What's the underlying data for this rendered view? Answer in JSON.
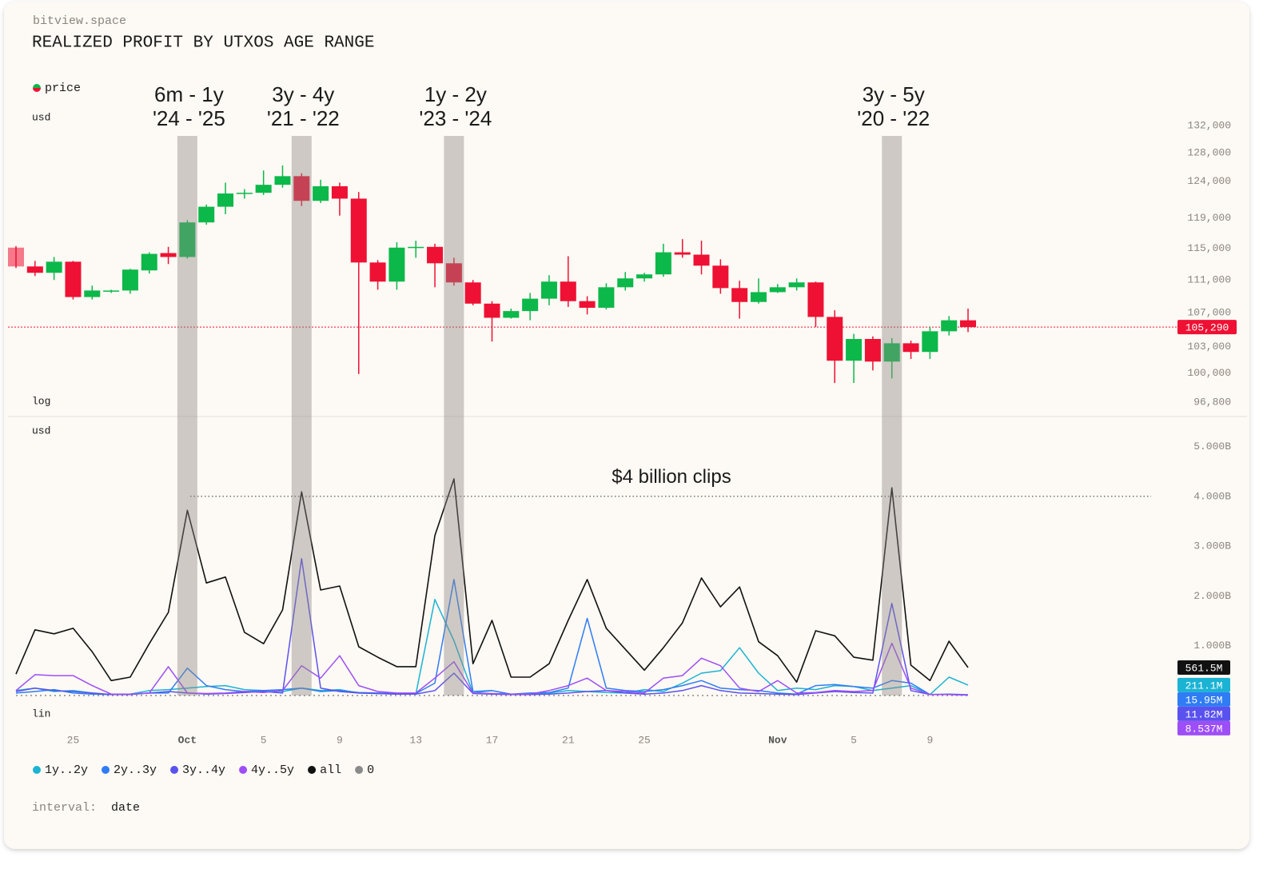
{
  "header": {
    "site": "bitview.space",
    "title": "REALIZED PROFIT BY UTXOS AGE RANGE"
  },
  "footer": {
    "label": "interval:",
    "value": "date"
  },
  "chart_data": [
    {
      "type": "candlestick",
      "name": "price",
      "y_unit": "usd",
      "scale": "log",
      "up_color": "#0cb84a",
      "down_color": "#ee1133",
      "categories": [
        "Sep 22",
        "Sep 23",
        "Sep 24",
        "Sep 25",
        "Sep 26",
        "Sep 27",
        "Sep 28",
        "Sep 29",
        "Sep 30",
        "Oct 1",
        "Oct 2",
        "Oct 3",
        "Oct 4",
        "Oct 5",
        "Oct 6",
        "Oct 7",
        "Oct 8",
        "Oct 9",
        "Oct 10",
        "Oct 11",
        "Oct 12",
        "Oct 13",
        "Oct 14",
        "Oct 15",
        "Oct 16",
        "Oct 17",
        "Oct 18",
        "Oct 19",
        "Oct 20",
        "Oct 21",
        "Oct 22",
        "Oct 23",
        "Oct 24",
        "Oct 25",
        "Oct 26",
        "Oct 27",
        "Oct 28",
        "Oct 29",
        "Oct 30",
        "Oct 31",
        "Nov 1",
        "Nov 2",
        "Nov 3",
        "Nov 4",
        "Nov 5",
        "Nov 6",
        "Nov 7",
        "Nov 8",
        "Nov 9",
        "Nov 10",
        "Nov 11"
      ],
      "open": [
        115100,
        112700,
        111900,
        113300,
        108900,
        109600,
        109700,
        112200,
        114400,
        113900,
        118400,
        120500,
        122300,
        122400,
        123500,
        124700,
        121300,
        123300,
        121600,
        113200,
        110800,
        115100,
        115200,
        113100,
        110700,
        108100,
        106400,
        107200,
        108700,
        110800,
        108400,
        107600,
        110100,
        111200,
        111700,
        114500,
        114200,
        112800,
        110000,
        108300,
        109500,
        110100,
        110700,
        106500,
        101400,
        103900,
        101300,
        103400,
        102400,
        104800,
        106100
      ],
      "high": [
        115300,
        113400,
        113900,
        113400,
        110300,
        109800,
        112400,
        114500,
        115200,
        118700,
        120800,
        123800,
        122900,
        125500,
        126200,
        125100,
        124200,
        123800,
        122500,
        113500,
        115800,
        116000,
        115600,
        113800,
        111000,
        108400,
        107500,
        109400,
        111600,
        114000,
        109000,
        110600,
        112000,
        111900,
        115600,
        116200,
        116000,
        113600,
        110900,
        111200,
        110500,
        111200,
        110800,
        107300,
        104500,
        104200,
        104000,
        103700,
        105300,
        106600,
        107500
      ],
      "low": [
        112500,
        111500,
        111000,
        108600,
        108600,
        109400,
        109300,
        111800,
        113000,
        113700,
        118100,
        119500,
        121600,
        122100,
        123100,
        120600,
        121000,
        119300,
        99900,
        109800,
        109800,
        113800,
        110100,
        110300,
        107900,
        103600,
        106300,
        106100,
        107900,
        107700,
        106800,
        107400,
        109700,
        110800,
        111400,
        113800,
        111700,
        109300,
        106300,
        108100,
        109400,
        109700,
        105300,
        98900,
        98900,
        100300,
        99400,
        101600,
        101600,
        104300,
        104700
      ],
      "close": [
        112700,
        111900,
        113300,
        108900,
        109700,
        109700,
        112300,
        114300,
        113900,
        118400,
        120500,
        122300,
        122400,
        123500,
        124700,
        121300,
        123300,
        121600,
        113200,
        110800,
        115100,
        115200,
        113100,
        110700,
        108100,
        106400,
        107200,
        108700,
        110800,
        108400,
        107600,
        110100,
        111200,
        111700,
        114500,
        114200,
        112800,
        110000,
        108300,
        109500,
        110100,
        110700,
        106500,
        101400,
        103900,
        101300,
        103400,
        102400,
        104800,
        106100,
        105290
      ],
      "last_label": "105,290",
      "ylim": [
        95765,
        134010
      ],
      "yticks": [
        {
          "value": 96800,
          "label": "96,800"
        },
        {
          "value": 100000,
          "label": "100,000"
        },
        {
          "value": 103000,
          "label": "103,000"
        },
        {
          "value": 107000,
          "label": "107,000"
        },
        {
          "value": 111000,
          "label": "111,000"
        },
        {
          "value": 115000,
          "label": "115,000"
        },
        {
          "value": 119000,
          "label": "119,000"
        },
        {
          "value": 124000,
          "label": "124,000"
        },
        {
          "value": 128000,
          "label": "128,000"
        },
        {
          "value": 132000,
          "label": "132,000"
        }
      ],
      "annotations": [
        {
          "x": "Oct 1",
          "lines": [
            "6m - 1y",
            "'24 - '25"
          ]
        },
        {
          "x": "Oct 7",
          "lines": [
            "3y - 4y",
            "'21 - '22"
          ]
        },
        {
          "x": "Oct 15",
          "lines": [
            "1y - 2y",
            "'23 - '24"
          ]
        },
        {
          "x": "Nov 7",
          "lines": [
            "3y - 5y",
            "'20 - '22"
          ]
        }
      ]
    },
    {
      "type": "line",
      "y_unit": "usd",
      "scale": "lin",
      "categories": [
        "Sep 22",
        "Sep 23",
        "Sep 24",
        "Sep 25",
        "Sep 26",
        "Sep 27",
        "Sep 28",
        "Sep 29",
        "Sep 30",
        "Oct 1",
        "Oct 2",
        "Oct 3",
        "Oct 4",
        "Oct 5",
        "Oct 6",
        "Oct 7",
        "Oct 8",
        "Oct 9",
        "Oct 10",
        "Oct 11",
        "Oct 12",
        "Oct 13",
        "Oct 14",
        "Oct 15",
        "Oct 16",
        "Oct 17",
        "Oct 18",
        "Oct 19",
        "Oct 20",
        "Oct 21",
        "Oct 22",
        "Oct 23",
        "Oct 24",
        "Oct 25",
        "Oct 26",
        "Oct 27",
        "Oct 28",
        "Oct 29",
        "Oct 30",
        "Oct 31",
        "Nov 1",
        "Nov 2",
        "Nov 3",
        "Nov 4",
        "Nov 5",
        "Nov 6",
        "Nov 7",
        "Nov 8",
        "Nov 9",
        "Nov 10",
        "Nov 11"
      ],
      "xticks": [
        {
          "value": "Sep 25",
          "label": "25"
        },
        {
          "value": "Oct 1",
          "label": "Oct"
        },
        {
          "value": "Oct 5",
          "label": "5"
        },
        {
          "value": "Oct 9",
          "label": "9"
        },
        {
          "value": "Oct 13",
          "label": "13"
        },
        {
          "value": "Oct 17",
          "label": "17"
        },
        {
          "value": "Oct 21",
          "label": "21"
        },
        {
          "value": "Oct 25",
          "label": "25"
        },
        {
          "value": "Nov 1",
          "label": "Nov"
        },
        {
          "value": "Nov 5",
          "label": "5"
        },
        {
          "value": "Nov 9",
          "label": "9"
        }
      ],
      "ylim": [
        -160000000,
        5217000000
      ],
      "yticks": [
        {
          "value": 1000000000,
          "label": "1.000B"
        },
        {
          "value": 2000000000,
          "label": "2.000B"
        },
        {
          "value": 3000000000,
          "label": "3.000B"
        },
        {
          "value": 4000000000,
          "label": "4.000B"
        },
        {
          "value": 5000000000,
          "label": "5.000B"
        }
      ],
      "reference_line": {
        "value": 4000000000,
        "label": "$4 billion clips"
      },
      "series": [
        {
          "name": "1y..2y",
          "color": "#1bb3d3",
          "last_label": "211.1M",
          "values": [
            100000000,
            150000000,
            80000000,
            100000000,
            50000000,
            20000000,
            30000000,
            100000000,
            120000000,
            150000000,
            180000000,
            200000000,
            120000000,
            100000000,
            80000000,
            150000000,
            100000000,
            120000000,
            50000000,
            40000000,
            30000000,
            30000000,
            1930000000,
            1100000000,
            50000000,
            100000000,
            20000000,
            40000000,
            50000000,
            100000000,
            80000000,
            60000000,
            50000000,
            120000000,
            80000000,
            250000000,
            450000000,
            500000000,
            960000000,
            450000000,
            100000000,
            150000000,
            120000000,
            200000000,
            180000000,
            100000000,
            150000000,
            200000000,
            20000000,
            370000000,
            211100000
          ]
        },
        {
          "name": "2y..3y",
          "color": "#2f7cf4",
          "last_label": "15.95M",
          "values": [
            50000000,
            80000000,
            120000000,
            50000000,
            30000000,
            20000000,
            30000000,
            50000000,
            50000000,
            550000000,
            200000000,
            120000000,
            80000000,
            100000000,
            120000000,
            150000000,
            80000000,
            100000000,
            60000000,
            50000000,
            40000000,
            40000000,
            250000000,
            2330000000,
            80000000,
            100000000,
            30000000,
            50000000,
            60000000,
            150000000,
            1550000000,
            150000000,
            100000000,
            80000000,
            120000000,
            200000000,
            300000000,
            150000000,
            120000000,
            100000000,
            50000000,
            30000000,
            200000000,
            220000000,
            180000000,
            150000000,
            300000000,
            250000000,
            20000000,
            30000000,
            15950000
          ]
        },
        {
          "name": "3y..4y",
          "color": "#5a52ee",
          "last_label": "11.82M",
          "values": [
            80000000,
            150000000,
            100000000,
            80000000,
            50000000,
            20000000,
            20000000,
            50000000,
            80000000,
            50000000,
            30000000,
            40000000,
            60000000,
            80000000,
            50000000,
            2750000000,
            150000000,
            80000000,
            50000000,
            40000000,
            30000000,
            30000000,
            100000000,
            450000000,
            40000000,
            30000000,
            20000000,
            20000000,
            30000000,
            50000000,
            80000000,
            100000000,
            50000000,
            30000000,
            50000000,
            100000000,
            200000000,
            100000000,
            50000000,
            40000000,
            30000000,
            20000000,
            50000000,
            80000000,
            60000000,
            50000000,
            1850000000,
            100000000,
            20000000,
            20000000,
            11820000
          ]
        },
        {
          "name": "4y..5y",
          "color": "#9d4ef6",
          "last_label": "8.537M",
          "values": [
            100000000,
            420000000,
            400000000,
            400000000,
            200000000,
            30000000,
            30000000,
            50000000,
            580000000,
            50000000,
            40000000,
            50000000,
            80000000,
            60000000,
            100000000,
            600000000,
            350000000,
            800000000,
            200000000,
            80000000,
            50000000,
            50000000,
            350000000,
            680000000,
            50000000,
            40000000,
            30000000,
            30000000,
            100000000,
            200000000,
            350000000,
            100000000,
            80000000,
            50000000,
            350000000,
            400000000,
            750000000,
            600000000,
            150000000,
            80000000,
            300000000,
            50000000,
            60000000,
            100000000,
            80000000,
            100000000,
            1050000000,
            150000000,
            20000000,
            20000000,
            8537000
          ]
        },
        {
          "name": "all",
          "color": "#111111",
          "last_label": "561.5M",
          "values": [
            430000000,
            1320000000,
            1240000000,
            1350000000,
            880000000,
            300000000,
            370000000,
            1040000000,
            1670000000,
            3720000000,
            2260000000,
            2380000000,
            1270000000,
            1040000000,
            1720000000,
            4090000000,
            2120000000,
            2200000000,
            980000000,
            770000000,
            580000000,
            580000000,
            3210000000,
            4350000000,
            640000000,
            1510000000,
            370000000,
            370000000,
            640000000,
            1510000000,
            2330000000,
            1350000000,
            930000000,
            510000000,
            960000000,
            1460000000,
            2360000000,
            1780000000,
            2180000000,
            1080000000,
            800000000,
            270000000,
            1300000000,
            1200000000,
            770000000,
            710000000,
            4170000000,
            610000000,
            300000000,
            1090000000,
            561500000
          ]
        },
        {
          "name": "0",
          "color": "#8a8a8a",
          "dashed": true,
          "values": [
            0,
            0,
            0,
            0,
            0,
            0,
            0,
            0,
            0,
            0,
            0,
            0,
            0,
            0,
            0,
            0,
            0,
            0,
            0,
            0,
            0,
            0,
            0,
            0,
            0,
            0,
            0,
            0,
            0,
            0,
            0,
            0,
            0,
            0,
            0,
            0,
            0,
            0,
            0,
            0,
            0,
            0,
            0,
            0,
            0,
            0,
            0,
            0,
            0,
            0,
            0
          ]
        }
      ]
    }
  ]
}
